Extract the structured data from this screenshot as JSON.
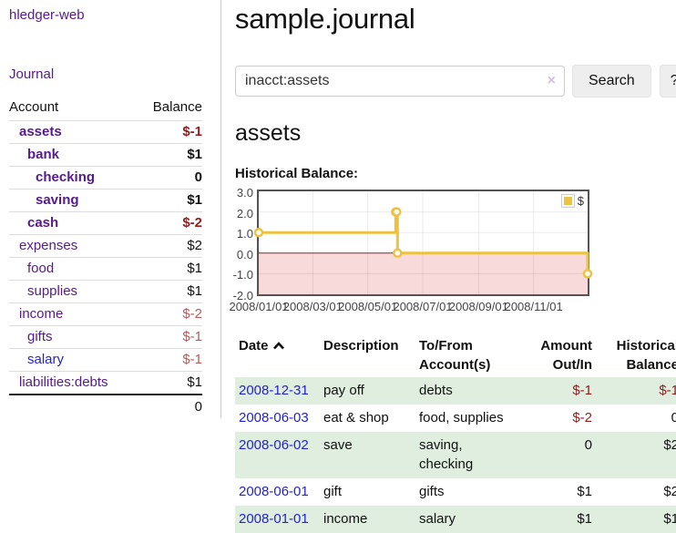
{
  "app": {
    "title": "hledger-web",
    "nav_journal": "Journal"
  },
  "sidebar": {
    "accounts_header": {
      "account": "Account",
      "balance": "Balance"
    },
    "accounts": [
      {
        "name": "assets",
        "indent": 1,
        "bold": true,
        "balance": "$-1",
        "neg": true
      },
      {
        "name": "bank",
        "indent": 2,
        "bold": true,
        "balance": "$1",
        "neg": false
      },
      {
        "name": "checking",
        "indent": 3,
        "bold": true,
        "balance": "0",
        "neg": false
      },
      {
        "name": "saving",
        "indent": 3,
        "bold": true,
        "balance": "$1",
        "neg": false
      },
      {
        "name": "cash",
        "indent": 2,
        "bold": true,
        "balance": "$-2",
        "neg": true
      },
      {
        "name": "expenses",
        "indent": 1,
        "bold": false,
        "balance": "$2",
        "neg": false
      },
      {
        "name": "food",
        "indent": 2,
        "bold": false,
        "balance": "$1",
        "neg": false
      },
      {
        "name": "supplies",
        "indent": 2,
        "bold": false,
        "balance": "$1",
        "neg": false
      },
      {
        "name": "income",
        "indent": 1,
        "bold": false,
        "balance": "$-2",
        "neg": true
      },
      {
        "name": "gifts",
        "indent": 2,
        "bold": false,
        "balance": "$-1",
        "neg": true
      },
      {
        "name": "salary",
        "indent": 2,
        "bold": false,
        "balance": "$-1",
        "neg": true,
        "unvisited": true
      },
      {
        "name": "liabilities:debts",
        "indent": 1,
        "bold": false,
        "balance": "$1",
        "neg": false
      }
    ],
    "total": "0"
  },
  "main": {
    "title": "sample.journal",
    "search": {
      "value": "inacct:assets",
      "clear_icon": "×",
      "button": "Search",
      "help_button": "?"
    },
    "account_heading": "assets",
    "chart_label": "Historical Balance:"
  },
  "chart_data": {
    "type": "line",
    "title": "Historical Balance",
    "series": [
      {
        "name": "$",
        "color": "#edc240",
        "step": true,
        "points": [
          {
            "x": "2008-01-01",
            "y": 1
          },
          {
            "x": "2008-06-01",
            "y": 2
          },
          {
            "x": "2008-06-02",
            "y": 2
          },
          {
            "x": "2008-06-03",
            "y": 0
          },
          {
            "x": "2008-12-31",
            "y": -1
          }
        ]
      }
    ],
    "x_range": [
      "2008-01-01",
      "2008-12-31"
    ],
    "x_ticks": [
      "2008/01/01",
      "2008/03/01",
      "2008/05/01",
      "2008/07/01",
      "2008/09/01",
      "2008/11/01"
    ],
    "y_ticks": [
      "3.0",
      "2.0",
      "1.0",
      "0.0",
      "-1.0",
      "-2.0"
    ],
    "ylim": [
      -2,
      3
    ],
    "legend": "$",
    "legend_position": "top-right",
    "grid": true,
    "negative_region_color": "#f9dada",
    "zero_line_color": "#8b2222"
  },
  "register": {
    "headers": {
      "date": "Date",
      "description": "Description",
      "account": "To/From Account(s)",
      "amount": "Amount Out/In",
      "balance": "Historical Balance"
    },
    "rows": [
      {
        "date": "2008-12-31",
        "description": "pay off",
        "account": "debts",
        "amount": "$-1",
        "amount_neg": true,
        "balance": "$-1",
        "balance_neg": true,
        "shaded": true
      },
      {
        "date": "2008-06-03",
        "description": "eat & shop",
        "account": "food, supplies",
        "amount": "$-2",
        "amount_neg": true,
        "balance": "0",
        "balance_neg": false,
        "shaded": false
      },
      {
        "date": "2008-06-02",
        "description": "save",
        "account": "saving, checking",
        "amount": "0",
        "amount_neg": false,
        "balance": "$2",
        "balance_neg": false,
        "shaded": true
      },
      {
        "date": "2008-06-01",
        "description": "gift",
        "account": "gifts",
        "amount": "$1",
        "amount_neg": false,
        "balance": "$2",
        "balance_neg": false,
        "shaded": false
      },
      {
        "date": "2008-01-01",
        "description": "income",
        "account": "salary",
        "amount": "$1",
        "amount_neg": false,
        "balance": "$1",
        "balance_neg": false,
        "shaded": true
      }
    ]
  }
}
